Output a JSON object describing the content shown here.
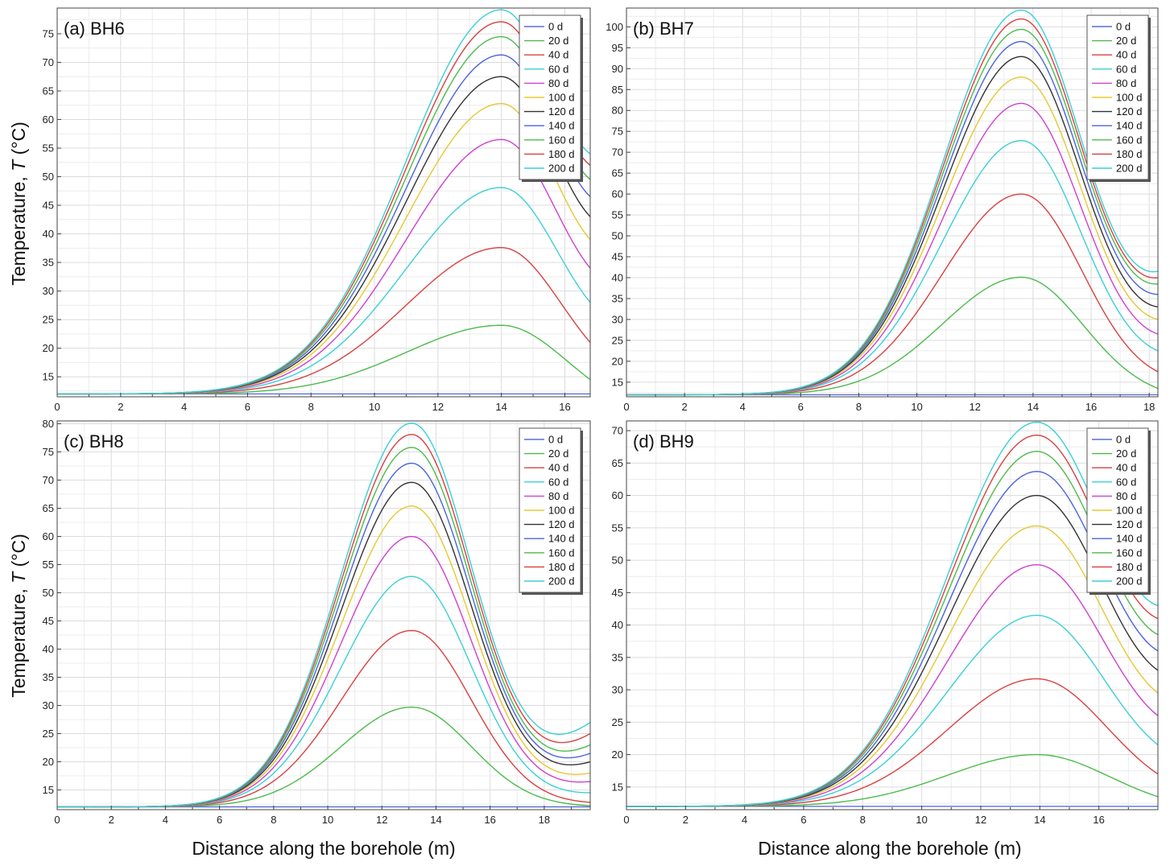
{
  "figure": {
    "ylabel_prefix": "Temperature, ",
    "ylabel_var": "T",
    "ylabel_unit": " (°C)",
    "xlabel": "Distance along the borehole (m)"
  },
  "legend_labels": [
    "0 d",
    "20 d",
    "40 d",
    "60 d",
    "80 d",
    "100 d",
    "120 d",
    "140 d",
    "160 d",
    "180 d",
    "200 d"
  ],
  "series_colors": [
    "#5a6fd6",
    "#4cbb4c",
    "#d94040",
    "#3ad0d6",
    "#cf40cf",
    "#e6c832",
    "#333333",
    "#4a62e0",
    "#4cbb4c",
    "#d94040",
    "#3ad0d6"
  ],
  "chart_data": [
    {
      "type": "line",
      "title": "(a) BH6",
      "xlabel": "Distance along the borehole (m)",
      "ylabel": "Temperature, T (°C)",
      "xlim": [
        0,
        16.8
      ],
      "ylim": [
        11.5,
        79.5
      ],
      "xticks": [
        0,
        2,
        4,
        6,
        8,
        10,
        12,
        14,
        16
      ],
      "yticks": [
        15,
        20,
        25,
        30,
        35,
        40,
        45,
        50,
        55,
        60,
        65,
        70,
        75
      ],
      "legend_position": "top-right",
      "baseline": 12,
      "peak_x": 14,
      "sigma_left": 3.0,
      "sigma_right": 1.9,
      "series": [
        {
          "name": "0 d",
          "peak": 12,
          "end_value": 12
        },
        {
          "name": "20 d",
          "peak": 24,
          "end_value": 14.5
        },
        {
          "name": "40 d",
          "peak": 37.6,
          "end_value": 21
        },
        {
          "name": "60 d",
          "peak": 48.1,
          "end_value": 28
        },
        {
          "name": "80 d",
          "peak": 56.5,
          "end_value": 34
        },
        {
          "name": "100 d",
          "peak": 62.8,
          "end_value": 39
        },
        {
          "name": "120 d",
          "peak": 67.5,
          "end_value": 43
        },
        {
          "name": "140 d",
          "peak": 71.3,
          "end_value": 46.5
        },
        {
          "name": "160 d",
          "peak": 74.5,
          "end_value": 49.5
        },
        {
          "name": "180 d",
          "peak": 77.1,
          "end_value": 52
        },
        {
          "name": "200 d",
          "peak": 79.2,
          "end_value": 54
        }
      ]
    },
    {
      "type": "line",
      "title": "(b) BH7",
      "xlabel": "Distance along the borehole (m)",
      "ylabel": "Temperature, T (°C)",
      "xlim": [
        0,
        18.3
      ],
      "ylim": [
        11.5,
        104.5
      ],
      "xticks": [
        0,
        2,
        4,
        6,
        8,
        10,
        12,
        14,
        16,
        18
      ],
      "yticks": [
        15,
        20,
        25,
        30,
        35,
        40,
        45,
        50,
        55,
        60,
        65,
        70,
        75,
        80,
        85,
        90,
        95,
        100
      ],
      "legend_position": "top-right",
      "baseline": 12,
      "peak_x": 13.6,
      "sigma_left": 2.7,
      "sigma_right": 2.1,
      "series": [
        {
          "name": "0 d",
          "peak": 12,
          "end_value": 12
        },
        {
          "name": "20 d",
          "peak": 40.1,
          "end_value": 13.5
        },
        {
          "name": "40 d",
          "peak": 60,
          "end_value": 17.5
        },
        {
          "name": "60 d",
          "peak": 72.8,
          "end_value": 22.5
        },
        {
          "name": "80 d",
          "peak": 81.7,
          "end_value": 26.5
        },
        {
          "name": "100 d",
          "peak": 88,
          "end_value": 30
        },
        {
          "name": "120 d",
          "peak": 92.9,
          "end_value": 33
        },
        {
          "name": "140 d",
          "peak": 96.5,
          "end_value": 36
        },
        {
          "name": "160 d",
          "peak": 99.4,
          "end_value": 38.5
        },
        {
          "name": "180 d",
          "peak": 101.9,
          "end_value": 40
        },
        {
          "name": "200 d",
          "peak": 104,
          "end_value": 41.5
        }
      ]
    },
    {
      "type": "line",
      "title": "(c) BH8",
      "xlabel": "Distance along the borehole (m)",
      "ylabel": "Temperature, T (°C)",
      "xlim": [
        0,
        19.7
      ],
      "ylim": [
        11.5,
        80.5
      ],
      "xticks": [
        0,
        2,
        4,
        6,
        8,
        10,
        12,
        14,
        16,
        18
      ],
      "yticks": [
        15,
        20,
        25,
        30,
        35,
        40,
        45,
        50,
        55,
        60,
        65,
        70,
        75,
        80
      ],
      "legend_position": "top-right",
      "baseline": 12,
      "peak_x": 13.1,
      "sigma_left": 2.6,
      "sigma_right": 2.2,
      "series": [
        {
          "name": "0 d",
          "peak": 12,
          "end_value": 12
        },
        {
          "name": "20 d",
          "peak": 29.7,
          "end_value": 12.2
        },
        {
          "name": "40 d",
          "peak": 43.3,
          "end_value": 12.8
        },
        {
          "name": "60 d",
          "peak": 52.9,
          "end_value": 14.5
        },
        {
          "name": "80 d",
          "peak": 60,
          "end_value": 16.5
        },
        {
          "name": "100 d",
          "peak": 65.4,
          "end_value": 18
        },
        {
          "name": "120 d",
          "peak": 69.6,
          "end_value": 20
        },
        {
          "name": "140 d",
          "peak": 73,
          "end_value": 21.5
        },
        {
          "name": "160 d",
          "peak": 75.8,
          "end_value": 23
        },
        {
          "name": "180 d",
          "peak": 78.1,
          "end_value": 25
        },
        {
          "name": "200 d",
          "peak": 80.1,
          "end_value": 27
        }
      ]
    },
    {
      "type": "line",
      "title": "(d) BH9",
      "xlabel": "Distance along the borehole (m)",
      "ylabel": "Temperature, T (°C)",
      "xlim": [
        0,
        18
      ],
      "ylim": [
        11.5,
        71.5
      ],
      "xticks": [
        0,
        2,
        4,
        6,
        8,
        10,
        12,
        14,
        16
      ],
      "yticks": [
        15,
        20,
        25,
        30,
        35,
        40,
        45,
        50,
        55,
        60,
        65,
        70
      ],
      "legend_position": "top-right",
      "baseline": 12,
      "peak_x": 13.9,
      "sigma_left": 3.0,
      "sigma_right": 2.4,
      "series": [
        {
          "name": "0 d",
          "peak": 12,
          "end_value": 12
        },
        {
          "name": "20 d",
          "peak": 20,
          "end_value": 13.5
        },
        {
          "name": "40 d",
          "peak": 31.7,
          "end_value": 17
        },
        {
          "name": "60 d",
          "peak": 41.5,
          "end_value": 21.5
        },
        {
          "name": "80 d",
          "peak": 49.3,
          "end_value": 26
        },
        {
          "name": "100 d",
          "peak": 55.3,
          "end_value": 29.5
        },
        {
          "name": "120 d",
          "peak": 60,
          "end_value": 33
        },
        {
          "name": "140 d",
          "peak": 63.7,
          "end_value": 36
        },
        {
          "name": "160 d",
          "peak": 66.8,
          "end_value": 38.5
        },
        {
          "name": "180 d",
          "peak": 69.3,
          "end_value": 41
        },
        {
          "name": "200 d",
          "peak": 71.3,
          "end_value": 43
        }
      ]
    }
  ]
}
